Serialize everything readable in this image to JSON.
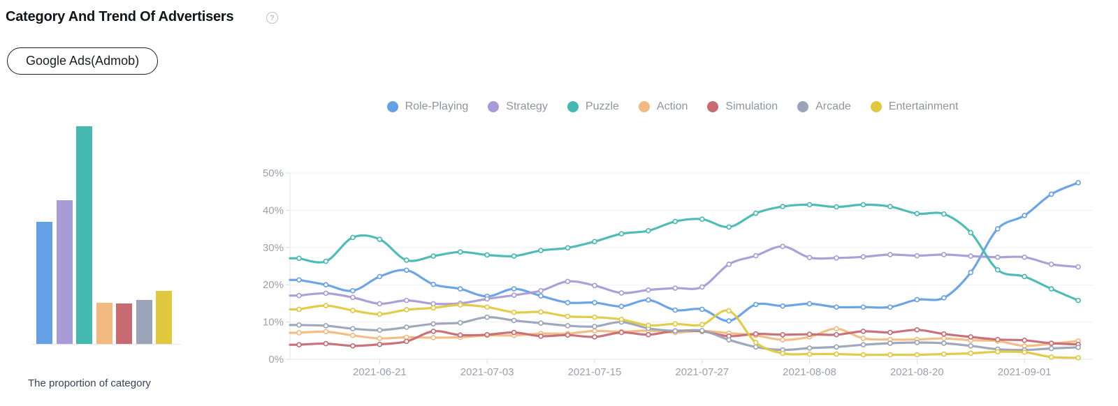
{
  "page": {
    "title": "Category And Trend Of Advertisers",
    "help_glyph": "?"
  },
  "filter": {
    "network_label": "Google Ads(Admob)"
  },
  "palette": {
    "role_playing": "#64a0e6",
    "strategy": "#a89bd7",
    "puzzle": "#46b8b2",
    "action": "#f2ba80",
    "simulation": "#c76a72",
    "arcade": "#9aa3b8",
    "entertainment": "#e0c93f",
    "axis_label": "#9aa1aa",
    "grid_line": "#eef0f3",
    "axis_line": "#e3e6ea"
  },
  "chart_data": [
    {
      "id": "category-proportion-bar",
      "type": "bar",
      "title": "The proportion of category",
      "categories": [
        "Role-Playing",
        "Strategy",
        "Puzzle",
        "Action",
        "Simulation",
        "Arcade",
        "Entertainment"
      ],
      "values": [
        18.4,
        21.7,
        32.8,
        6.2,
        6.1,
        6.6,
        8.0
      ],
      "colors": [
        "#64a0e6",
        "#a89bd7",
        "#46b8b2",
        "#f2ba80",
        "#c76a72",
        "#9aa3b8",
        "#e0c93f"
      ],
      "axes_visible": false,
      "unit": "%"
    },
    {
      "id": "advertiser-trend-line",
      "type": "line",
      "smooth": true,
      "legend_position": "top-center",
      "grid": true,
      "ylim": [
        0,
        50
      ],
      "y_ticks": [
        "0%",
        "10%",
        "20%",
        "30%",
        "40%",
        "50%"
      ],
      "x_tick_labels": [
        "2021-06-21",
        "2021-07-03",
        "2021-07-15",
        "2021-07-27",
        "2021-08-08",
        "2021-08-20",
        "2021-09-01"
      ],
      "x_tick_indices": [
        3,
        7,
        11,
        15,
        19,
        23,
        27
      ],
      "num_points": 30,
      "series": [
        {
          "name": "Role-Playing",
          "color": "#64a0e6",
          "values": [
            21.3,
            20.0,
            18.4,
            22.2,
            23.9,
            20.1,
            18.9,
            16.9,
            18.9,
            17.0,
            15.2,
            15.2,
            14.2,
            15.9,
            13.2,
            13.4,
            10.3,
            14.7,
            14.3,
            14.9,
            14.0,
            14.0,
            14.0,
            16.0,
            16.5,
            23.3,
            35.0,
            38.6,
            44.3,
            47.4
          ]
        },
        {
          "name": "Strategy",
          "color": "#a89bd7",
          "values": [
            17.1,
            17.7,
            16.6,
            14.9,
            15.8,
            14.9,
            15.0,
            16.2,
            17.2,
            18.4,
            20.9,
            19.8,
            17.8,
            18.6,
            19.1,
            19.4,
            25.5,
            27.8,
            30.3,
            27.3,
            27.2,
            27.5,
            28.1,
            27.8,
            28.1,
            27.7,
            27.4,
            27.4,
            25.5,
            24.8
          ]
        },
        {
          "name": "Puzzle",
          "color": "#46b8b2",
          "values": [
            27.1,
            26.3,
            32.7,
            32.2,
            26.6,
            27.7,
            28.8,
            28.0,
            27.7,
            29.2,
            29.9,
            31.6,
            33.7,
            34.5,
            37.0,
            37.6,
            35.5,
            39.2,
            41.0,
            41.5,
            40.9,
            41.5,
            41.0,
            39.1,
            39.0,
            34.0,
            24.0,
            22.2,
            18.9,
            15.8
          ]
        },
        {
          "name": "Action",
          "color": "#f2ba80",
          "values": [
            7.1,
            7.4,
            6.4,
            5.6,
            5.9,
            5.8,
            5.9,
            6.4,
            6.4,
            6.9,
            6.9,
            7.6,
            7.4,
            7.7,
            7.2,
            7.6,
            7.0,
            6.4,
            5.2,
            6.0,
            8.2,
            5.6,
            5.3,
            5.3,
            5.6,
            5.1,
            4.9,
            3.6,
            4.2,
            4.9
          ]
        },
        {
          "name": "Simulation",
          "color": "#c76a72",
          "values": [
            3.9,
            4.2,
            3.6,
            4.0,
            4.8,
            7.5,
            6.5,
            6.6,
            7.2,
            6.2,
            6.5,
            6.0,
            7.2,
            6.6,
            7.6,
            7.5,
            6.2,
            6.8,
            6.6,
            6.7,
            6.6,
            7.5,
            7.2,
            7.9,
            6.8,
            6.0,
            5.3,
            5.1,
            4.3,
            4.0
          ]
        },
        {
          "name": "Arcade",
          "color": "#9aa3b8",
          "values": [
            9.2,
            9.0,
            8.2,
            7.8,
            8.6,
            9.5,
            9.8,
            11.3,
            10.4,
            9.7,
            9.0,
            8.8,
            10.0,
            8.3,
            7.6,
            7.7,
            5.2,
            3.3,
            2.5,
            3.0,
            3.3,
            3.9,
            4.3,
            4.5,
            4.3,
            3.6,
            2.7,
            2.5,
            2.9,
            3.2
          ]
        },
        {
          "name": "Entertainment",
          "color": "#e0c93f",
          "values": [
            13.4,
            14.4,
            13.1,
            12.1,
            13.3,
            13.8,
            14.6,
            14.0,
            12.6,
            12.7,
            11.5,
            11.3,
            10.7,
            9.1,
            9.5,
            9.3,
            13.0,
            4.5,
            1.6,
            1.4,
            1.4,
            1.2,
            1.2,
            1.2,
            1.4,
            1.6,
            2.0,
            1.9,
            0.6,
            0.4
          ]
        }
      ]
    }
  ]
}
